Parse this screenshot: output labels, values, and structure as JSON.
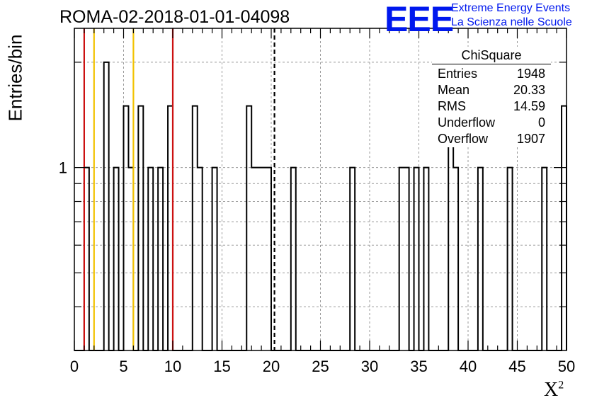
{
  "header": {
    "run_id": "ROMA-02-2018-01-01-04098",
    "logo_text": "EEE",
    "logo_line1": "Extreme Energy Events",
    "logo_line2": "La Scienza nelle Scuole"
  },
  "stats_box": {
    "title": "ChiSquare",
    "rows": [
      {
        "label": "Entries",
        "value": "1948"
      },
      {
        "label": "Mean",
        "value": "20.33"
      },
      {
        "label": "RMS",
        "value": "14.59"
      },
      {
        "label": "Underflow",
        "value": "0"
      },
      {
        "label": "Overflow",
        "value": "1907"
      }
    ]
  },
  "chart_data": {
    "type": "bar",
    "title": "ROMA-02-2018-01-01-04098",
    "ylabel": "Entries/bin",
    "xlabel": "X",
    "xlabel_superscript": "2",
    "xlim": [
      0,
      50
    ],
    "ylim": [
      0.3,
      2.5
    ],
    "yscale": "log",
    "grid": true,
    "bin_width": 0.5,
    "x_ticks": [
      0,
      5,
      10,
      15,
      20,
      25,
      30,
      35,
      40,
      45,
      50
    ],
    "y_tick_labels": [
      "1"
    ],
    "bins": [
      {
        "x": 1.0,
        "y": 1
      },
      {
        "x": 3.0,
        "y": 2
      },
      {
        "x": 4.0,
        "y": 1
      },
      {
        "x": 5.0,
        "y": 1.5
      },
      {
        "x": 5.5,
        "y": 1
      },
      {
        "x": 6.5,
        "y": 1.5
      },
      {
        "x": 7.5,
        "y": 1
      },
      {
        "x": 8.5,
        "y": 1
      },
      {
        "x": 9.5,
        "y": 1.5
      },
      {
        "x": 12.0,
        "y": 1.5
      },
      {
        "x": 12.5,
        "y": 1
      },
      {
        "x": 14.0,
        "y": 1
      },
      {
        "x": 17.5,
        "y": 1.5
      },
      {
        "x": 18.0,
        "y": 1
      },
      {
        "x": 18.5,
        "y": 1
      },
      {
        "x": 19.0,
        "y": 1
      },
      {
        "x": 19.5,
        "y": 1
      },
      {
        "x": 22.0,
        "y": 1
      },
      {
        "x": 28.0,
        "y": 1
      },
      {
        "x": 33.0,
        "y": 1
      },
      {
        "x": 33.5,
        "y": 1
      },
      {
        "x": 34.5,
        "y": 1
      },
      {
        "x": 35.5,
        "y": 1
      },
      {
        "x": 38.0,
        "y": 1.5
      },
      {
        "x": 38.5,
        "y": 1
      },
      {
        "x": 41.0,
        "y": 1
      },
      {
        "x": 44.0,
        "y": 1
      },
      {
        "x": 47.5,
        "y": 1
      },
      {
        "x": 49.5,
        "y": 1.5
      }
    ],
    "reference_lines": [
      {
        "x": 1.0,
        "color": "#cc1111",
        "style": "solid"
      },
      {
        "x": 2.0,
        "color": "#f2c200",
        "style": "solid"
      },
      {
        "x": 6.0,
        "color": "#f2c200",
        "style": "solid"
      },
      {
        "x": 10.0,
        "color": "#cc1111",
        "style": "solid"
      },
      {
        "x": 20.33,
        "color": "#000000",
        "style": "dashed"
      }
    ]
  }
}
